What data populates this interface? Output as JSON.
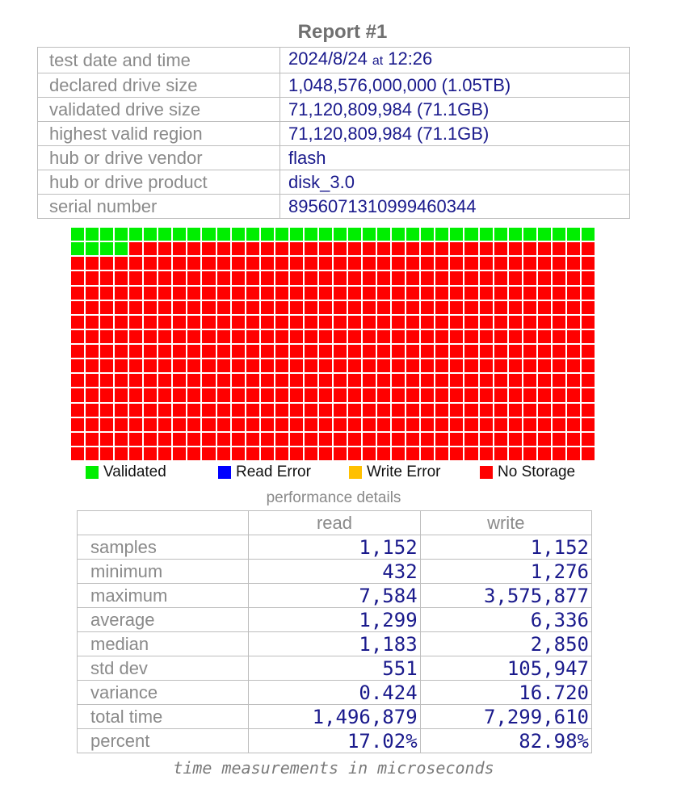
{
  "report": {
    "title": "Report #1",
    "rows": [
      {
        "label": "test date and time",
        "date": "2024/8/24",
        "at": "at",
        "time": "12:26"
      },
      {
        "label": "declared drive size",
        "value": "1,048,576,000,000 (1.05TB)"
      },
      {
        "label": "validated drive size",
        "value": "71,120,809,984 (71.1GB)"
      },
      {
        "label": "highest valid region",
        "value": "71,120,809,984 (71.1GB)"
      },
      {
        "label": "hub or drive vendor",
        "value": "flash"
      },
      {
        "label": "hub or drive product",
        "value": "disk_3.0"
      },
      {
        "label": "serial number",
        "value": "8956071310999460344"
      }
    ]
  },
  "map": {
    "columns": 36,
    "rows": 16,
    "validated_cells": 40,
    "colors": {
      "validated": "#00ee00",
      "read_error": "#0000ff",
      "write_error": "#ffc000",
      "no_storage": "#ff0000"
    }
  },
  "legend": {
    "validated": "Validated",
    "read_error": "Read Error",
    "write_error": "Write Error",
    "no_storage": "No Storage"
  },
  "performance": {
    "title": "performance details",
    "columns": [
      "read",
      "write"
    ],
    "rows": [
      {
        "label": "samples",
        "read": "1,152",
        "write": "1,152"
      },
      {
        "label": "minimum",
        "read": "432",
        "write": "1,276"
      },
      {
        "label": "maximum",
        "read": "7,584",
        "write": "3,575,877"
      },
      {
        "label": "average",
        "read": "1,299",
        "write": "6,336"
      },
      {
        "label": "median",
        "read": "1,183",
        "write": "2,850"
      },
      {
        "label": "std dev",
        "read": "551",
        "write": "105,947"
      },
      {
        "label": "variance",
        "read": "0.424",
        "write": "16.720"
      },
      {
        "label": "total time",
        "read": "1,496,879",
        "write": "7,299,610"
      },
      {
        "label": "percent",
        "read": "17.02%",
        "write": "82.98%"
      }
    ],
    "footnote": "time measurements in microseconds"
  }
}
